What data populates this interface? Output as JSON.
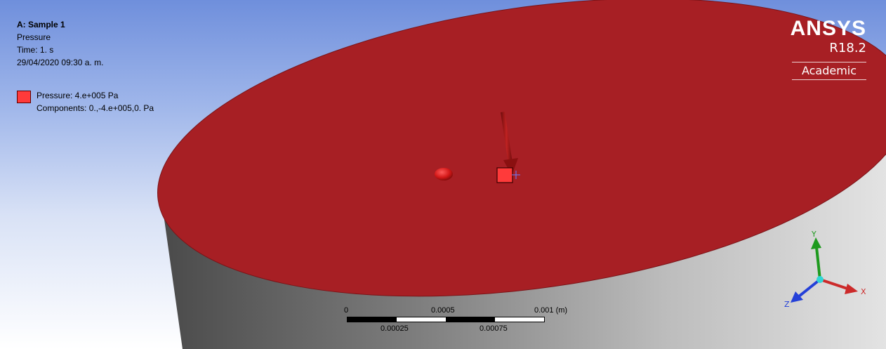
{
  "legend": {
    "title": "A: Sample 1",
    "type": "Pressure",
    "time": "Time: 1. s",
    "timestamp": "29/04/2020 09:30 a. m.",
    "item_label": "Pressure: 4.e+005 Pa",
    "item_components": "Components: 0.,-4.e+005,0. Pa",
    "item_color": "#ff3a3a"
  },
  "brand": {
    "name": "ANSYS",
    "version": "R18.2",
    "edition": "Academic"
  },
  "scale": {
    "top_labels": [
      "0",
      "0.0005",
      "0.001 (m)"
    ],
    "bottom_labels": [
      "0.00025",
      "0.00075"
    ]
  },
  "triad": {
    "x": "X",
    "y": "Y",
    "z": "Z",
    "x_color": "#cc2a2a",
    "y_color": "#1e9a1e",
    "z_color": "#2440d8"
  },
  "colors": {
    "face": "#a71f24",
    "load_marker": "#ff3a3a"
  }
}
